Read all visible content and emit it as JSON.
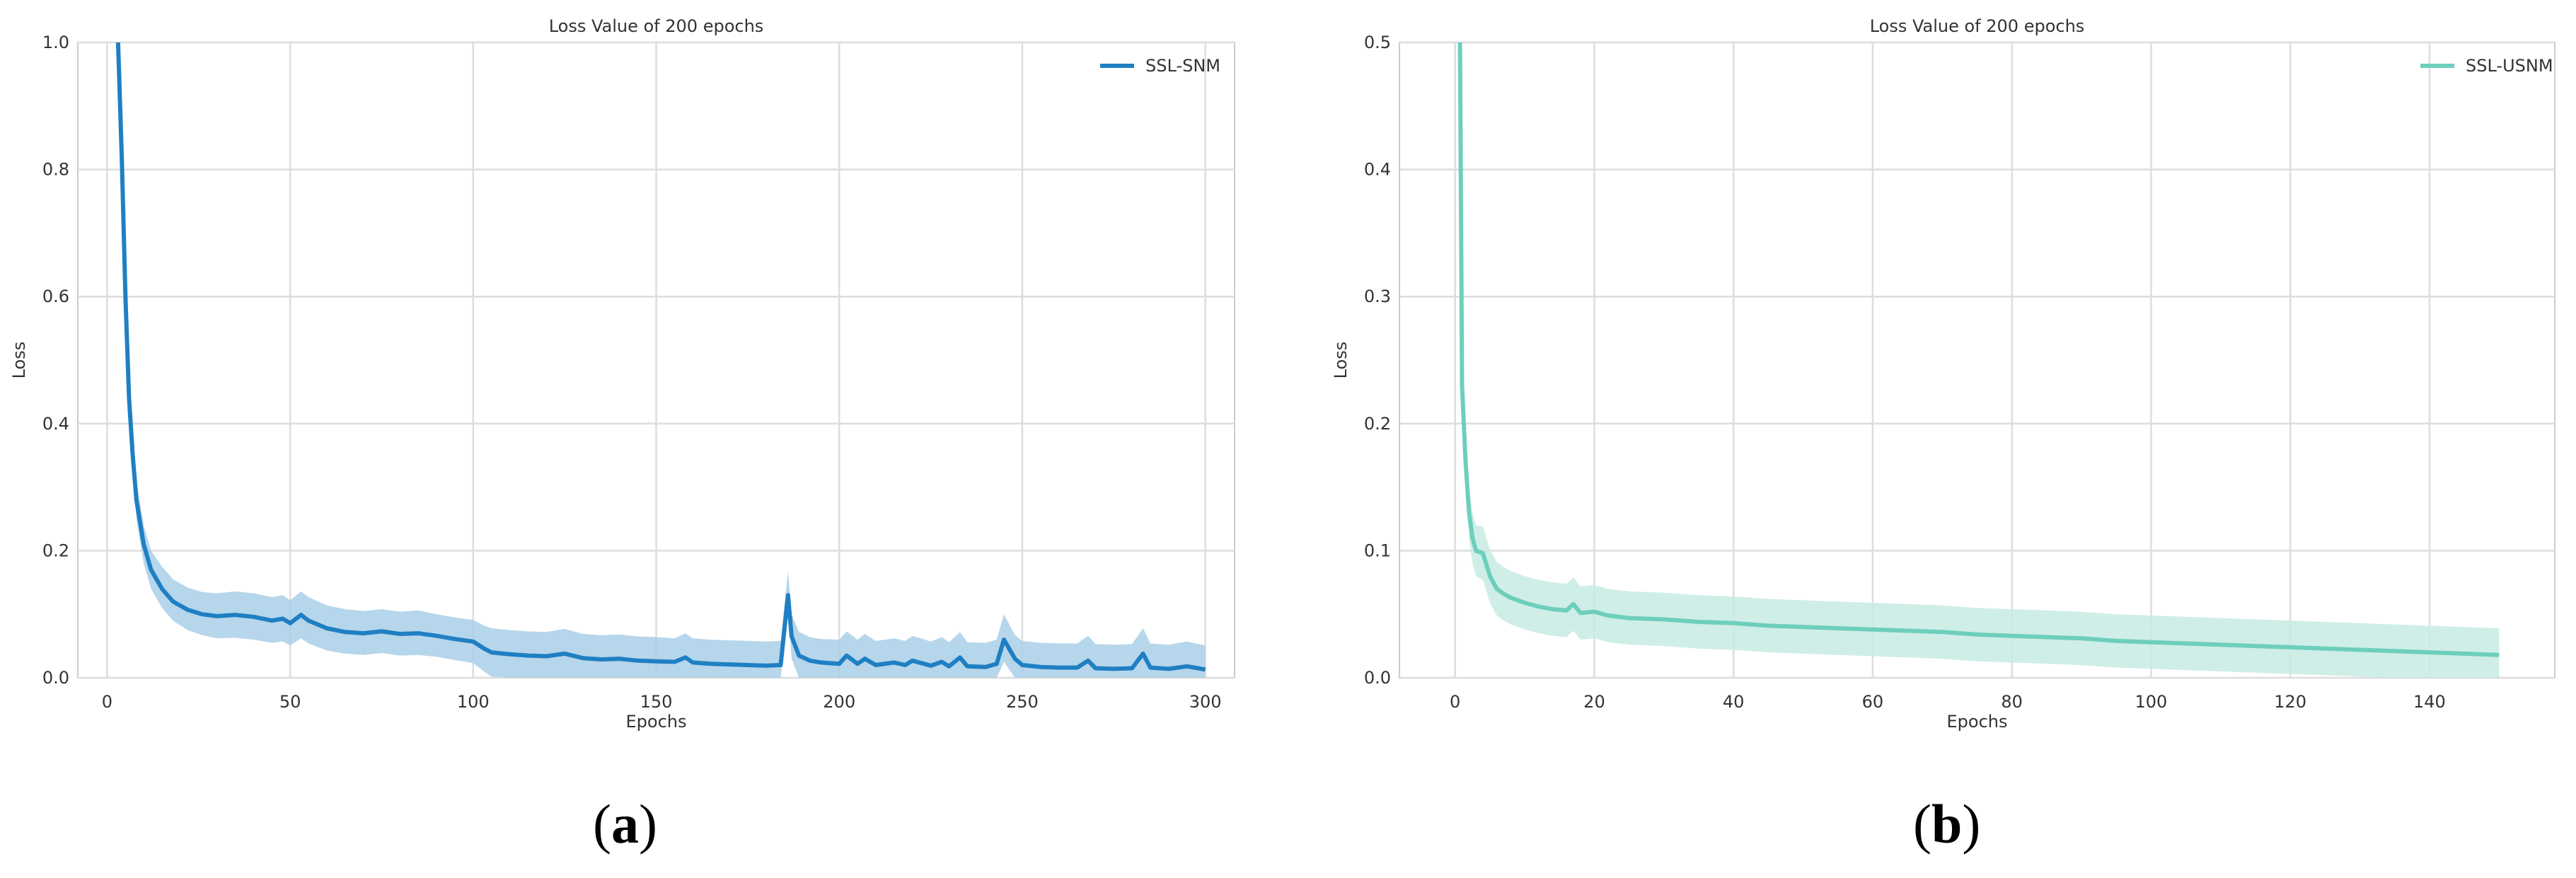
{
  "captions": {
    "a_open": "(",
    "a_letter": "a",
    "a_close": ")",
    "b_open": "(",
    "b_letter": "b",
    "b_close": ")"
  },
  "chart_data": [
    {
      "type": "line",
      "title": "Loss Value of 200 epochs",
      "xlabel": "Epochs",
      "ylabel": "Loss",
      "xlim": [
        -8,
        308
      ],
      "ylim": [
        0,
        1.0
      ],
      "xticks": [
        0,
        50,
        100,
        150,
        200,
        250,
        300
      ],
      "yticks": [
        0.0,
        0.2,
        0.4,
        0.6,
        0.8,
        1.0
      ],
      "xtick_labels": [
        "0",
        "50",
        "100",
        "150",
        "200",
        "250",
        "300"
      ],
      "ytick_labels": [
        "0.0",
        "0.2",
        "0.4",
        "0.6",
        "0.8",
        "1.0"
      ],
      "grid": true,
      "legend_position": "top-right",
      "color": "#1f7fc3",
      "band_color": "#a9cfe8",
      "series": [
        {
          "name": "SSL-SNM",
          "x": [
            3,
            4,
            5,
            6,
            7,
            8,
            10,
            12,
            15,
            18,
            22,
            26,
            30,
            35,
            40,
            45,
            48,
            50,
            53,
            55,
            60,
            65,
            70,
            75,
            80,
            85,
            90,
            95,
            100,
            103,
            105,
            110,
            115,
            120,
            125,
            130,
            135,
            140,
            145,
            150,
            155,
            158,
            160,
            165,
            170,
            175,
            180,
            184,
            186,
            187,
            189,
            192,
            195,
            200,
            202,
            205,
            207,
            210,
            215,
            218,
            220,
            225,
            228,
            230,
            233,
            235,
            240,
            243,
            245,
            248,
            250,
            255,
            260,
            265,
            268,
            270,
            275,
            280,
            283,
            285,
            290,
            295,
            300
          ],
          "y": [
            1.0,
            0.82,
            0.6,
            0.44,
            0.35,
            0.28,
            0.21,
            0.17,
            0.14,
            0.12,
            0.107,
            0.1,
            0.097,
            0.099,
            0.096,
            0.09,
            0.093,
            0.086,
            0.099,
            0.09,
            0.078,
            0.072,
            0.07,
            0.073,
            0.069,
            0.07,
            0.066,
            0.061,
            0.057,
            0.046,
            0.04,
            0.037,
            0.035,
            0.034,
            0.038,
            0.031,
            0.029,
            0.03,
            0.027,
            0.026,
            0.025,
            0.032,
            0.024,
            0.022,
            0.021,
            0.02,
            0.019,
            0.02,
            0.13,
            0.065,
            0.035,
            0.027,
            0.024,
            0.022,
            0.035,
            0.022,
            0.03,
            0.02,
            0.024,
            0.02,
            0.027,
            0.019,
            0.025,
            0.018,
            0.032,
            0.018,
            0.017,
            0.022,
            0.06,
            0.03,
            0.02,
            0.017,
            0.016,
            0.016,
            0.027,
            0.015,
            0.014,
            0.015,
            0.038,
            0.016,
            0.014,
            0.018,
            0.013
          ],
          "band_lower": [
            0.96,
            0.78,
            0.57,
            0.41,
            0.32,
            0.25,
            0.18,
            0.14,
            0.11,
            0.09,
            0.075,
            0.067,
            0.062,
            0.063,
            0.06,
            0.055,
            0.057,
            0.051,
            0.062,
            0.054,
            0.043,
            0.038,
            0.036,
            0.039,
            0.035,
            0.036,
            0.033,
            0.028,
            0.023,
            0.01,
            0.002,
            0.0,
            0.0,
            0.0,
            0.0,
            0.0,
            0.0,
            0.0,
            0.0,
            0.0,
            0.0,
            0.0,
            0.0,
            0.0,
            0.0,
            0.0,
            0.0,
            0.0,
            0.1,
            0.03,
            0.0,
            0.0,
            0.0,
            0.0,
            0.0,
            0.0,
            0.0,
            0.0,
            0.0,
            0.0,
            0.0,
            0.0,
            0.0,
            0.0,
            0.0,
            0.0,
            0.0,
            0.0,
            0.025,
            0.0,
            0.0,
            0.0,
            0.0,
            0.0,
            0.0,
            0.0,
            0.0,
            0.0,
            0.0,
            0.0,
            0.0,
            0.0,
            0.0
          ],
          "band_upper": [
            1.0,
            0.86,
            0.64,
            0.48,
            0.39,
            0.31,
            0.24,
            0.2,
            0.175,
            0.155,
            0.142,
            0.135,
            0.133,
            0.136,
            0.133,
            0.127,
            0.13,
            0.122,
            0.136,
            0.127,
            0.114,
            0.108,
            0.105,
            0.108,
            0.104,
            0.106,
            0.1,
            0.095,
            0.091,
            0.082,
            0.078,
            0.075,
            0.073,
            0.072,
            0.077,
            0.069,
            0.067,
            0.068,
            0.065,
            0.064,
            0.062,
            0.07,
            0.062,
            0.06,
            0.059,
            0.058,
            0.057,
            0.058,
            0.168,
            0.1,
            0.072,
            0.064,
            0.061,
            0.06,
            0.073,
            0.06,
            0.069,
            0.058,
            0.062,
            0.058,
            0.066,
            0.057,
            0.064,
            0.056,
            0.072,
            0.056,
            0.055,
            0.06,
            0.1,
            0.067,
            0.058,
            0.055,
            0.054,
            0.054,
            0.066,
            0.053,
            0.052,
            0.053,
            0.078,
            0.054,
            0.052,
            0.057,
            0.051
          ]
        }
      ]
    },
    {
      "type": "line",
      "title": "Loss Value of 200 epochs",
      "xlabel": "Epochs",
      "ylabel": "Loss",
      "xlim": [
        -8,
        158
      ],
      "ylim": [
        0,
        0.5
      ],
      "xticks": [
        0,
        20,
        40,
        60,
        80,
        100,
        120,
        140
      ],
      "yticks": [
        0.0,
        0.1,
        0.2,
        0.3,
        0.4,
        0.5
      ],
      "xtick_labels": [
        "0",
        "20",
        "40",
        "60",
        "80",
        "100",
        "120",
        "140"
      ],
      "ytick_labels": [
        "0.0",
        "0.1",
        "0.2",
        "0.3",
        "0.4",
        "0.5"
      ],
      "grid": true,
      "legend_position": "top-right",
      "color": "#6dcfbb",
      "band_color": "#c7ebe3",
      "series": [
        {
          "name": "SSL-USNM",
          "x": [
            0.7,
            1,
            1.5,
            2,
            2.5,
            3,
            4,
            5,
            6,
            7,
            8,
            10,
            12,
            14,
            16,
            17,
            18,
            20,
            22,
            25,
            30,
            35,
            40,
            45,
            50,
            55,
            60,
            65,
            70,
            75,
            80,
            85,
            90,
            95,
            100,
            105,
            110,
            115,
            120,
            125,
            130,
            135,
            140,
            145,
            150
          ],
          "y": [
            0.5,
            0.23,
            0.17,
            0.13,
            0.11,
            0.1,
            0.098,
            0.08,
            0.07,
            0.066,
            0.063,
            0.059,
            0.056,
            0.054,
            0.053,
            0.058,
            0.051,
            0.052,
            0.049,
            0.047,
            0.046,
            0.044,
            0.043,
            0.041,
            0.04,
            0.039,
            0.038,
            0.037,
            0.036,
            0.034,
            0.033,
            0.032,
            0.031,
            0.029,
            0.028,
            0.027,
            0.026,
            0.025,
            0.024,
            0.023,
            0.022,
            0.021,
            0.02,
            0.019,
            0.018
          ],
          "band_lower": [
            0.48,
            0.21,
            0.15,
            0.11,
            0.09,
            0.08,
            0.077,
            0.059,
            0.049,
            0.045,
            0.042,
            0.038,
            0.035,
            0.033,
            0.032,
            0.037,
            0.03,
            0.031,
            0.028,
            0.026,
            0.025,
            0.023,
            0.022,
            0.02,
            0.019,
            0.018,
            0.017,
            0.016,
            0.015,
            0.013,
            0.012,
            0.011,
            0.01,
            0.008,
            0.007,
            0.006,
            0.005,
            0.004,
            0.003,
            0.002,
            0.001,
            0.0,
            0.0,
            0.0,
            0.0
          ],
          "band_upper": [
            0.5,
            0.25,
            0.19,
            0.15,
            0.13,
            0.12,
            0.119,
            0.101,
            0.091,
            0.087,
            0.084,
            0.08,
            0.077,
            0.075,
            0.074,
            0.079,
            0.072,
            0.073,
            0.07,
            0.068,
            0.067,
            0.065,
            0.064,
            0.062,
            0.061,
            0.06,
            0.059,
            0.058,
            0.057,
            0.055,
            0.054,
            0.053,
            0.052,
            0.05,
            0.049,
            0.048,
            0.047,
            0.046,
            0.045,
            0.044,
            0.043,
            0.042,
            0.041,
            0.04,
            0.039
          ]
        }
      ]
    }
  ]
}
